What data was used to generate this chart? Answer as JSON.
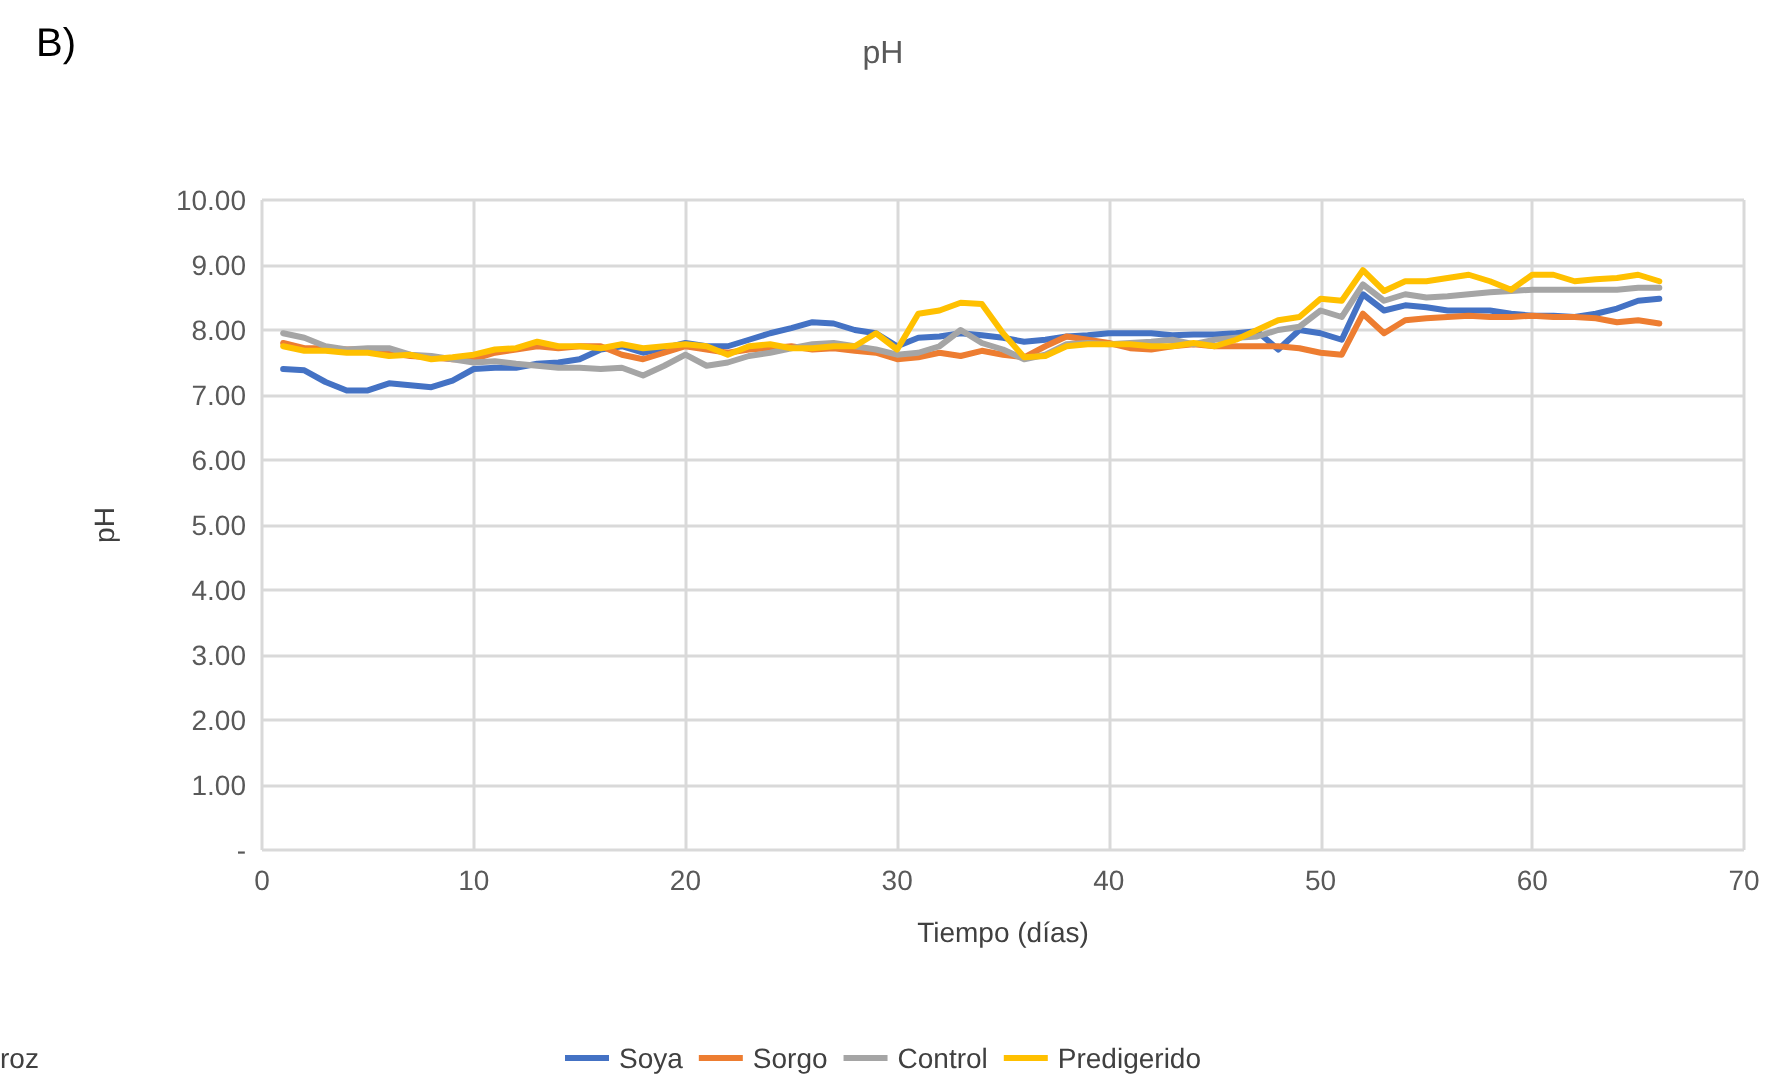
{
  "chart_data": {
    "type": "line",
    "title": "pH",
    "xlabel": "Tiempo (días)",
    "ylabel": "pH",
    "annotations": [
      "B)",
      "roz"
    ],
    "x": [
      1,
      2,
      3,
      4,
      5,
      6,
      7,
      8,
      9,
      10,
      11,
      12,
      13,
      14,
      15,
      16,
      17,
      18,
      19,
      20,
      21,
      22,
      23,
      24,
      25,
      26,
      27,
      28,
      29,
      30,
      31,
      32,
      33,
      34,
      35,
      36,
      37,
      38,
      39,
      40,
      41,
      42,
      43,
      44,
      45,
      46,
      47,
      48,
      49,
      50,
      51,
      52,
      53,
      54,
      55,
      56,
      57,
      58,
      59,
      60,
      61,
      62,
      63,
      64,
      65,
      66
    ],
    "series": [
      {
        "name": "Soya",
        "color": "#4472c4",
        "values": [
          7.4,
          7.38,
          7.2,
          7.07,
          7.07,
          7.18,
          7.15,
          7.12,
          7.22,
          7.4,
          7.42,
          7.42,
          7.48,
          7.5,
          7.55,
          7.7,
          7.75,
          7.65,
          7.72,
          7.8,
          7.75,
          7.75,
          7.85,
          7.95,
          8.03,
          8.12,
          8.1,
          8.0,
          7.95,
          7.75,
          7.88,
          7.9,
          7.95,
          7.92,
          7.88,
          7.82,
          7.85,
          7.9,
          7.92,
          7.95,
          7.95,
          7.95,
          7.92,
          7.93,
          7.93,
          7.95,
          7.98,
          7.7,
          8.0,
          7.95,
          7.85,
          8.55,
          8.3,
          8.38,
          8.35,
          8.3,
          8.3,
          8.3,
          8.25,
          8.22,
          8.22,
          8.2,
          8.25,
          8.33,
          8.45,
          8.48
        ]
      },
      {
        "name": "Sorgo",
        "color": "#ed7d31",
        "values": [
          7.8,
          7.72,
          7.72,
          7.7,
          7.7,
          7.65,
          7.6,
          7.58,
          7.55,
          7.55,
          7.65,
          7.7,
          7.75,
          7.72,
          7.75,
          7.75,
          7.62,
          7.55,
          7.65,
          7.75,
          7.7,
          7.65,
          7.7,
          7.72,
          7.75,
          7.7,
          7.72,
          7.68,
          7.65,
          7.55,
          7.58,
          7.65,
          7.6,
          7.68,
          7.62,
          7.58,
          7.75,
          7.9,
          7.85,
          7.8,
          7.72,
          7.7,
          7.75,
          7.78,
          7.75,
          7.75,
          7.75,
          7.75,
          7.72,
          7.65,
          7.62,
          8.25,
          7.95,
          8.15,
          8.18,
          8.2,
          8.22,
          8.2,
          8.2,
          8.22,
          8.2,
          8.2,
          8.18,
          8.12,
          8.15,
          8.1
        ]
      },
      {
        "name": "Control",
        "color": "#a5a5a5",
        "values": [
          7.95,
          7.88,
          7.75,
          7.7,
          7.72,
          7.72,
          7.62,
          7.6,
          7.55,
          7.5,
          7.52,
          7.48,
          7.45,
          7.42,
          7.42,
          7.4,
          7.42,
          7.3,
          7.45,
          7.62,
          7.45,
          7.5,
          7.6,
          7.65,
          7.72,
          7.78,
          7.8,
          7.75,
          7.7,
          7.62,
          7.65,
          7.75,
          8.0,
          7.8,
          7.7,
          7.55,
          7.62,
          7.78,
          7.8,
          7.78,
          7.8,
          7.82,
          7.85,
          7.78,
          7.85,
          7.88,
          7.9,
          8.0,
          8.05,
          8.3,
          8.2,
          8.7,
          8.45,
          8.55,
          8.5,
          8.52,
          8.55,
          8.58,
          8.6,
          8.62,
          8.62,
          8.62,
          8.62,
          8.62,
          8.65,
          8.65
        ]
      },
      {
        "name": "Predigerido",
        "color": "#ffc000",
        "values": [
          7.75,
          7.68,
          7.68,
          7.65,
          7.65,
          7.6,
          7.62,
          7.55,
          7.58,
          7.62,
          7.7,
          7.72,
          7.82,
          7.75,
          7.75,
          7.72,
          7.78,
          7.72,
          7.75,
          7.78,
          7.75,
          7.62,
          7.75,
          7.78,
          7.72,
          7.72,
          7.75,
          7.75,
          7.95,
          7.7,
          8.25,
          8.3,
          8.42,
          8.4,
          7.95,
          7.58,
          7.6,
          7.75,
          7.78,
          7.78,
          7.78,
          7.75,
          7.75,
          7.8,
          7.75,
          7.85,
          8.0,
          8.15,
          8.2,
          8.48,
          8.45,
          8.92,
          8.6,
          8.75,
          8.75,
          8.8,
          8.85,
          8.75,
          8.62,
          8.85,
          8.85,
          8.75,
          8.78,
          8.8,
          8.85,
          8.75
        ]
      }
    ],
    "xlim": [
      0,
      70
    ],
    "xticks": [
      0,
      10,
      20,
      30,
      40,
      50,
      60,
      70
    ],
    "ylim": [
      0,
      10
    ],
    "yticks": [
      {
        "value": 0,
        "label": "-"
      },
      {
        "value": 1,
        "label": "1.00"
      },
      {
        "value": 2,
        "label": "2.00"
      },
      {
        "value": 3,
        "label": "3.00"
      },
      {
        "value": 4,
        "label": "4.00"
      },
      {
        "value": 5,
        "label": "5.00"
      },
      {
        "value": 6,
        "label": "6.00"
      },
      {
        "value": 7,
        "label": "7.00"
      },
      {
        "value": 8,
        "label": "8.00"
      },
      {
        "value": 9,
        "label": "9.00"
      },
      {
        "value": 10,
        "label": "10.00"
      }
    ],
    "grid": true,
    "legend": "bottom",
    "marker": "none",
    "line_style": "solid"
  }
}
